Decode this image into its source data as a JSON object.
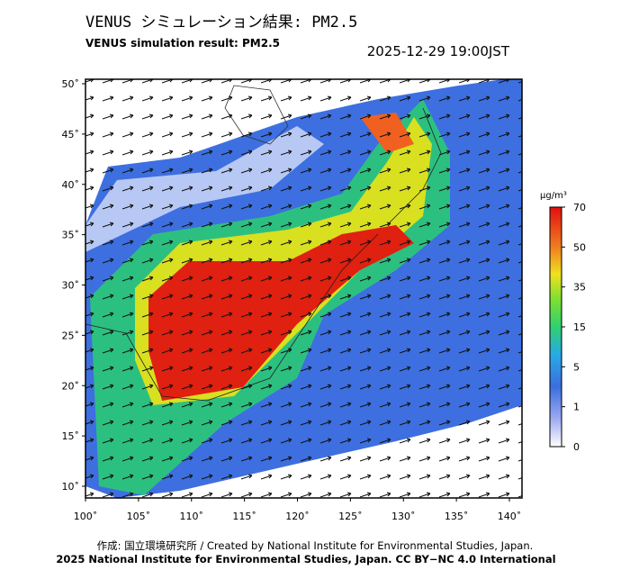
{
  "header": {
    "title": "VENUS シミュレーション結果: PM2.5",
    "subtitle": "VENUS simulation result: PM2.5",
    "datetime": "2025-12-29 19:00JST"
  },
  "map": {
    "lat_ticks": [
      {
        "value": 50,
        "label": "50˚"
      },
      {
        "value": 45,
        "label": "45˚"
      },
      {
        "value": 40,
        "label": "40˚"
      },
      {
        "value": 35,
        "label": "35˚"
      },
      {
        "value": 30,
        "label": "30˚"
      },
      {
        "value": 25,
        "label": "25˚"
      },
      {
        "value": 20,
        "label": "20˚"
      },
      {
        "value": 15,
        "label": "15˚"
      },
      {
        "value": 10,
        "label": "10˚"
      }
    ],
    "lon_ticks": [
      {
        "value": 100,
        "label": "100˚"
      },
      {
        "value": 105,
        "label": "105˚"
      },
      {
        "value": 110,
        "label": "110˚"
      },
      {
        "value": 115,
        "label": "115˚"
      },
      {
        "value": 120,
        "label": "120˚"
      },
      {
        "value": 125,
        "label": "125˚"
      },
      {
        "value": 130,
        "label": "130˚"
      },
      {
        "value": 135,
        "label": "135˚"
      },
      {
        "value": 140,
        "label": "140˚"
      }
    ]
  },
  "colorbar": {
    "unit": "μg/m³",
    "ticks": [
      0,
      1,
      5,
      15,
      35,
      50,
      70
    ]
  },
  "footer": {
    "credit": "作成: 国立環境研究所 / Created by National Institute for Environmental Studies, Japan.",
    "license": "2025 National Institute for Environmental Studies, Japan. CC BY−NC 4.0 International"
  }
}
